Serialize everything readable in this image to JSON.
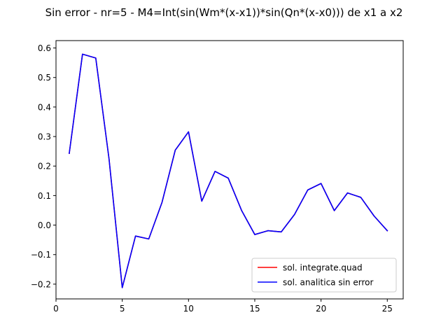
{
  "chart_data": {
    "type": "line",
    "title": "Sin error  - nr=5 - M4=Int(sin(Wm*(x-x1))*sin(Qn*(x-x0))) de x1 a x2",
    "xlabel": "",
    "ylabel": "",
    "xlim": [
      0,
      26.2
    ],
    "ylim": [
      -0.25,
      0.625
    ],
    "xticks": [
      0,
      5,
      10,
      15,
      20,
      25
    ],
    "xtick_labels": [
      "0",
      "5",
      "10",
      "15",
      "20",
      "25"
    ],
    "yticks": [
      -0.2,
      -0.1,
      0.0,
      0.1,
      0.2,
      0.3,
      0.4,
      0.5,
      0.6
    ],
    "ytick_labels": [
      "−0.2",
      "−0.1",
      "0.0",
      "0.1",
      "0.2",
      "0.3",
      "0.4",
      "0.5",
      "0.6"
    ],
    "grid": false,
    "legend_position": "lower-right",
    "x": [
      1,
      2,
      3,
      4,
      5,
      6,
      7,
      8,
      9,
      10,
      11,
      12,
      13,
      14,
      15,
      16,
      17,
      18,
      19,
      20,
      21,
      22,
      23,
      24,
      25
    ],
    "series": [
      {
        "name": "sol. integrate.quad",
        "color": "#ff0000",
        "values": [
          0.243,
          0.579,
          0.566,
          0.225,
          -0.212,
          -0.037,
          -0.047,
          0.077,
          0.254,
          0.316,
          0.081,
          0.182,
          0.159,
          0.05,
          -0.032,
          -0.019,
          -0.023,
          0.036,
          0.119,
          0.141,
          0.049,
          0.109,
          0.094,
          0.031,
          -0.019
        ]
      },
      {
        "name": "sol. analitica sin error",
        "color": "#0000ff",
        "values": [
          0.243,
          0.579,
          0.566,
          0.225,
          -0.212,
          -0.037,
          -0.047,
          0.077,
          0.254,
          0.316,
          0.081,
          0.182,
          0.159,
          0.05,
          -0.032,
          -0.019,
          -0.023,
          0.036,
          0.119,
          0.141,
          0.049,
          0.109,
          0.094,
          0.031,
          -0.019
        ]
      }
    ]
  }
}
